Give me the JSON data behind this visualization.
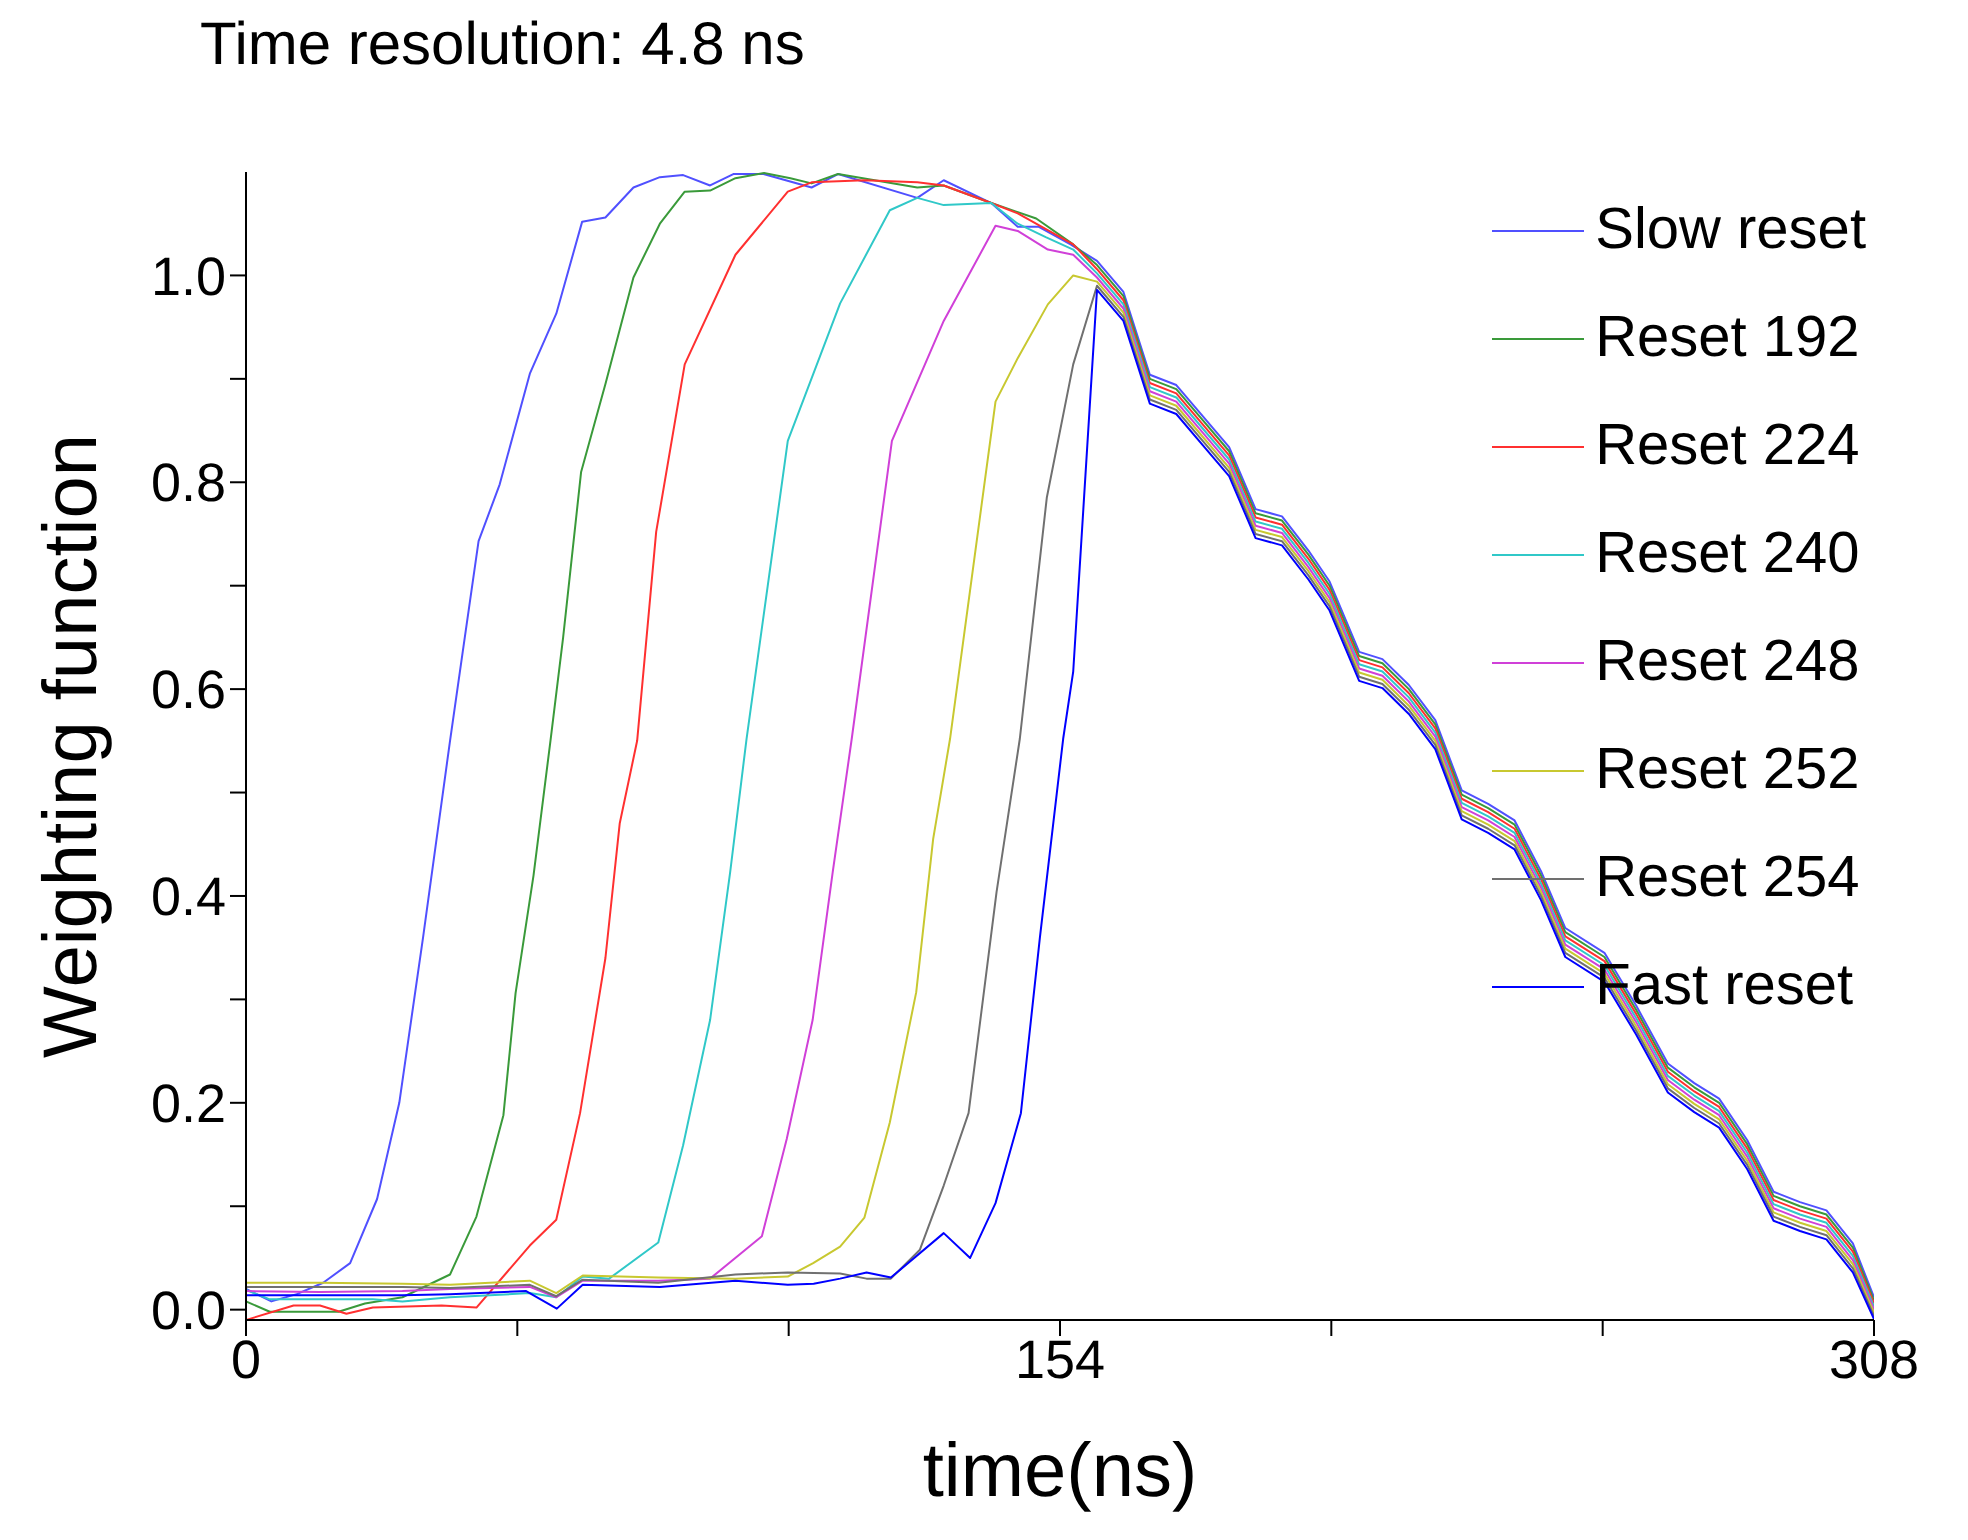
{
  "chart_data": {
    "type": "line",
    "title": "Time resolution: 4.8 ns",
    "xlabel": "time(ns)",
    "ylabel": "Weighting function",
    "xlim": [
      0,
      308
    ],
    "xticks": [
      0,
      {
        "value": 51.33,
        "label": null
      },
      {
        "value": 102.67,
        "label": null
      },
      154,
      {
        "value": 205.33,
        "label": null
      },
      {
        "value": 256.67,
        "label": null
      },
      308
    ],
    "ylim": [
      -0.01,
      1.1
    ],
    "yticks": [
      {
        "value": 0,
        "label": "0.0"
      },
      {
        "value": 0.1,
        "label": null
      },
      {
        "value": 0.2,
        "label": "0.2"
      },
      {
        "value": 0.3,
        "label": null
      },
      {
        "value": 0.4,
        "label": "0.4"
      },
      {
        "value": 0.5,
        "label": null
      },
      {
        "value": 0.6,
        "label": "0.6"
      },
      {
        "value": 0.7,
        "label": null
      },
      {
        "value": 0.8,
        "label": "0.8"
      },
      {
        "value": 0.9,
        "label": null
      },
      {
        "value": 1.0,
        "label": "1.0"
      }
    ],
    "legend": "top right",
    "marker": "none",
    "line_style": "solid",
    "series": [
      {
        "name": "Slow reset",
        "color": "#5050ff",
        "x": [
          0,
          4.8,
          9.6,
          14.6,
          19.7,
          24.8,
          29,
          33.5,
          38.6,
          41,
          44,
          48,
          53.7,
          58.7,
          63.6,
          68,
          73.3,
          78.3,
          82.7,
          87.8,
          92.2,
          97.9,
          107,
          112,
          127,
          132,
          141,
          146,
          150,
          156,
          161,
          166,
          171,
          176,
          181,
          186,
          191,
          196,
          201,
          205,
          210.6,
          215,
          220,
          225,
          230,
          235,
          240,
          245,
          249.6,
          257,
          263,
          269,
          274,
          278.7,
          284,
          289,
          294,
          299,
          304,
          308
        ],
        "values": [
          0.02,
          0.008,
          0.015,
          0.026,
          0.045,
          0.107,
          0.2,
          0.36,
          0.55,
          0.636,
          0.743,
          0.798,
          0.905,
          0.963,
          1.052,
          1.056,
          1.085,
          1.095,
          1.097,
          1.087,
          1.098,
          1.098,
          1.085,
          1.098,
          1.075,
          1.092,
          1.07,
          1.047,
          1.047,
          1.03,
          1.014,
          0.984,
          0.904,
          0.894,
          0.864,
          0.834,
          0.774,
          0.767,
          0.734,
          0.704,
          0.636,
          0.629,
          0.604,
          0.57,
          0.502,
          0.489,
          0.473,
          0.424,
          0.369,
          0.345,
          0.294,
          0.238,
          0.219,
          0.204,
          0.164,
          0.114,
          0.104,
          0.096,
          0.064,
          0.012
        ]
      },
      {
        "name": "Reset 192",
        "color": "#3a9a3a",
        "x": [
          0,
          4.5,
          17.5,
          22.5,
          29.6,
          38.6,
          43.6,
          48.7,
          51,
          54.4,
          57.6,
          60,
          63.4,
          68,
          73.3,
          78.3,
          83,
          87.8,
          92.6,
          98,
          103,
          107,
          112,
          127,
          132,
          141,
          149.5,
          156.5,
          161,
          166,
          171,
          176,
          181,
          186,
          191,
          196,
          201,
          205,
          210.6,
          215,
          220,
          225,
          230,
          235,
          240,
          245,
          249.6,
          257,
          263,
          269,
          274,
          278.7,
          284,
          289,
          294,
          299,
          304,
          308
        ],
        "values": [
          0.008,
          -0.002,
          -0.002,
          0.006,
          0.012,
          0.034,
          0.09,
          0.188,
          0.306,
          0.42,
          0.55,
          0.65,
          0.81,
          0.895,
          0.998,
          1.05,
          1.081,
          1.082,
          1.094,
          1.099,
          1.094,
          1.089,
          1.098,
          1.085,
          1.087,
          1.07,
          1.055,
          1.03,
          1.01,
          0.98,
          0.9,
          0.89,
          0.86,
          0.83,
          0.77,
          0.763,
          0.73,
          0.7,
          0.632,
          0.625,
          0.6,
          0.566,
          0.498,
          0.485,
          0.469,
          0.42,
          0.365,
          0.341,
          0.29,
          0.234,
          0.215,
          0.2,
          0.16,
          0.11,
          0.1,
          0.092,
          0.06,
          0.009
        ]
      },
      {
        "name": "Reset 224",
        "color": "#ff3030",
        "x": [
          0,
          9,
          14,
          19,
          24,
          37,
          43.6,
          53.7,
          58.7,
          63.2,
          68,
          70.7,
          74,
          77.6,
          83,
          92.6,
          102.5,
          107,
          117,
          127,
          132,
          141,
          146,
          156.5,
          161,
          166,
          171,
          176,
          181,
          186,
          191,
          196,
          201,
          205,
          210.6,
          215,
          220,
          225,
          230,
          235,
          240,
          245,
          249.6,
          257,
          263,
          269,
          274,
          278.7,
          284,
          289,
          294,
          299,
          304,
          308
        ],
        "values": [
          -0.01,
          0.004,
          0.004,
          -0.004,
          0.002,
          0.004,
          0.002,
          0.062,
          0.087,
          0.19,
          0.34,
          0.47,
          0.55,
          0.752,
          0.914,
          1.02,
          1.081,
          1.09,
          1.092,
          1.09,
          1.087,
          1.07,
          1.06,
          1.03,
          1.006,
          0.976,
          0.896,
          0.886,
          0.856,
          0.826,
          0.766,
          0.759,
          0.726,
          0.696,
          0.628,
          0.621,
          0.596,
          0.562,
          0.494,
          0.481,
          0.465,
          0.416,
          0.361,
          0.337,
          0.286,
          0.23,
          0.211,
          0.196,
          0.156,
          0.106,
          0.096,
          0.088,
          0.056,
          0.006
        ]
      },
      {
        "name": "Reset 240",
        "color": "#30c8c8",
        "x": [
          0,
          4.5,
          14,
          24,
          29.6,
          38.6,
          53.7,
          58.7,
          63.7,
          68.7,
          78,
          82.7,
          87.8,
          91.6,
          94.7,
          102.5,
          112.4,
          121.8,
          127,
          132,
          141,
          146,
          151.3,
          156.5,
          161,
          166,
          171,
          176,
          181,
          186,
          191,
          196,
          201,
          205,
          210.6,
          215,
          220,
          225,
          230,
          235,
          240,
          245,
          249.6,
          257,
          263,
          269,
          274,
          278.7,
          284,
          289,
          294,
          299,
          304,
          308
        ],
        "values": [
          0.019,
          0.01,
          0.01,
          0.01,
          0.008,
          0.012,
          0.016,
          0.012,
          0.032,
          0.03,
          0.065,
          0.159,
          0.28,
          0.423,
          0.552,
          0.84,
          0.973,
          1.063,
          1.075,
          1.068,
          1.07,
          1.05,
          1.037,
          1.025,
          1.002,
          0.972,
          0.892,
          0.882,
          0.852,
          0.822,
          0.762,
          0.755,
          0.722,
          0.692,
          0.624,
          0.617,
          0.592,
          0.558,
          0.49,
          0.477,
          0.461,
          0.412,
          0.357,
          0.333,
          0.282,
          0.226,
          0.207,
          0.192,
          0.152,
          0.102,
          0.092,
          0.084,
          0.052,
          0.003
        ]
      },
      {
        "name": "Reset 248",
        "color": "#d040d8",
        "x": [
          0,
          14,
          29.6,
          38.6,
          53.7,
          58.7,
          63.7,
          78,
          87.8,
          97.6,
          102.3,
          107.2,
          111,
          114.6,
          122.2,
          132,
          141.8,
          146,
          151.7,
          156.5,
          161,
          166,
          171,
          176,
          181,
          186,
          191,
          196,
          201,
          205,
          210.6,
          215,
          220,
          225,
          230,
          235,
          240,
          245,
          249.6,
          257,
          263,
          269,
          274,
          278.7,
          284,
          289,
          294,
          299,
          304,
          308
        ],
        "values": [
          0.018,
          0.017,
          0.018,
          0.02,
          0.022,
          0.012,
          0.028,
          0.028,
          0.03,
          0.071,
          0.165,
          0.28,
          0.423,
          0.552,
          0.84,
          0.956,
          1.048,
          1.043,
          1.025,
          1.02,
          0.998,
          0.968,
          0.888,
          0.878,
          0.848,
          0.818,
          0.758,
          0.751,
          0.718,
          0.688,
          0.62,
          0.613,
          0.588,
          0.554,
          0.486,
          0.473,
          0.457,
          0.408,
          0.353,
          0.329,
          0.278,
          0.222,
          0.203,
          0.188,
          0.148,
          0.098,
          0.088,
          0.08,
          0.048,
          0.0
        ]
      },
      {
        "name": "Reset 252",
        "color": "#c8c830",
        "x": [
          0,
          14,
          29.6,
          38.6,
          53.7,
          58.7,
          63.7,
          78,
          92.6,
          102.5,
          107.3,
          112.4,
          117,
          121.8,
          126.8,
          130,
          133.2,
          141.8,
          146,
          151.7,
          156.5,
          161,
          166,
          171,
          176,
          181,
          186,
          191,
          196,
          201,
          205,
          210.6,
          215,
          220,
          225,
          230,
          235,
          240,
          245,
          249.6,
          257,
          263,
          269,
          274,
          278.7,
          284,
          289,
          294,
          299,
          304,
          308
        ],
        "values": [
          0.026,
          0.026,
          0.025,
          0.024,
          0.028,
          0.016,
          0.033,
          0.031,
          0.03,
          0.032,
          0.045,
          0.061,
          0.089,
          0.181,
          0.307,
          0.455,
          0.552,
          0.878,
          0.92,
          0.972,
          1.0,
          0.994,
          0.964,
          0.884,
          0.874,
          0.844,
          0.814,
          0.754,
          0.747,
          0.714,
          0.684,
          0.616,
          0.609,
          0.584,
          0.55,
          0.482,
          0.469,
          0.453,
          0.404,
          0.349,
          0.325,
          0.274,
          0.218,
          0.199,
          0.184,
          0.144,
          0.094,
          0.084,
          0.076,
          0.044,
          -0.003
        ]
      },
      {
        "name": "Reset 254",
        "color": "#707070",
        "x": [
          0,
          14,
          29.6,
          38.6,
          53.7,
          58.7,
          63.7,
          78,
          92.6,
          102.5,
          112.4,
          117.4,
          122,
          127.5,
          132,
          136.7,
          142,
          146.4,
          151.5,
          156.5,
          161,
          166,
          171,
          176,
          181,
          186,
          191,
          196,
          201,
          205,
          210.6,
          215,
          220,
          225,
          230,
          235,
          240,
          245,
          249.6,
          257,
          263,
          269,
          274,
          278.7,
          284,
          289,
          294,
          299,
          304,
          308
        ],
        "values": [
          0.022,
          0.022,
          0.022,
          0.021,
          0.024,
          0.013,
          0.029,
          0.026,
          0.034,
          0.036,
          0.035,
          0.03,
          0.03,
          0.058,
          0.12,
          0.19,
          0.404,
          0.552,
          0.785,
          0.914,
          0.99,
          0.96,
          0.88,
          0.87,
          0.84,
          0.81,
          0.75,
          0.743,
          0.71,
          0.68,
          0.612,
          0.605,
          0.58,
          0.546,
          0.478,
          0.465,
          0.449,
          0.4,
          0.345,
          0.321,
          0.27,
          0.214,
          0.195,
          0.18,
          0.14,
          0.09,
          0.08,
          0.072,
          0.04,
          -0.006
        ]
      },
      {
        "name": "Fast reset",
        "color": "#0000ff",
        "x": [
          0,
          14,
          29.6,
          38.6,
          53,
          58.8,
          63.7,
          78.3,
          92.6,
          102.5,
          107.4,
          112.4,
          117.4,
          122,
          132,
          137,
          141.8,
          146.6,
          150.2,
          154.6,
          156.5,
          161,
          166,
          171,
          176,
          181,
          186,
          191,
          196,
          201,
          205,
          210.6,
          215,
          220,
          225,
          230,
          235,
          240,
          245,
          249.6,
          257,
          263,
          269,
          274,
          278.7,
          284,
          289,
          294,
          299,
          304,
          308
        ],
        "values": [
          0.014,
          0.014,
          0.014,
          0.015,
          0.018,
          0.001,
          0.024,
          0.022,
          0.028,
          0.024,
          0.025,
          0.03,
          0.036,
          0.031,
          0.074,
          0.05,
          0.103,
          0.19,
          0.36,
          0.552,
          0.617,
          0.986,
          0.956,
          0.876,
          0.866,
          0.836,
          0.806,
          0.746,
          0.739,
          0.706,
          0.676,
          0.608,
          0.601,
          0.576,
          0.542,
          0.474,
          0.461,
          0.445,
          0.396,
          0.341,
          0.317,
          0.266,
          0.21,
          0.191,
          0.176,
          0.136,
          0.086,
          0.076,
          0.068,
          0.036,
          -0.009
        ]
      }
    ]
  }
}
